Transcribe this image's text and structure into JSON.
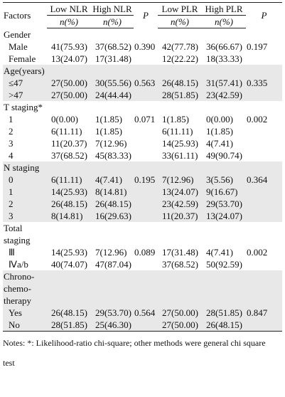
{
  "header": {
    "factors": "Factors",
    "low_nlr": "Low NLR",
    "high_nlr": "High NLR",
    "p1": "P",
    "low_plr": "Low PLR",
    "high_plr": "High PLR",
    "p2": "P",
    "n_pct": [
      "n(%)",
      "n(%)",
      "n(%)",
      "n(%)"
    ]
  },
  "sections": [
    {
      "label": "Gender",
      "p_nlr": "0.390",
      "p_plr": "0.197",
      "rows": [
        {
          "label": "Male",
          "cells": [
            "41(75.93)",
            "37(68.52)",
            "42(77.78)",
            "36(66.67)"
          ]
        },
        {
          "label": "Female",
          "cells": [
            "13(24.07)",
            "17(31.48)",
            "12(22.22)",
            "18(33.33)"
          ]
        }
      ]
    },
    {
      "label": "Age(years)",
      "p_nlr": "0.563",
      "p_plr": "0.335",
      "rows": [
        {
          "label": "≤47",
          "cells": [
            "27(50.00)",
            "30(55.56)",
            "26(48.15)",
            "31(57.41)"
          ]
        },
        {
          "label": ">47",
          "cells": [
            "27(50.00)",
            "24(44.44)",
            "28(51.85)",
            "23(42.59)"
          ]
        }
      ]
    },
    {
      "label": "T staging*",
      "p_nlr": "0.071",
      "p_plr": "0.002",
      "rows": [
        {
          "label": "1",
          "cells": [
            "0(0.00)",
            "1(1.85)",
            "1(1.85)",
            "0(0.00)"
          ]
        },
        {
          "label": "2",
          "cells": [
            "6(11.11)",
            "1(1.85)",
            "6(11.11)",
            "1(1.85)"
          ]
        },
        {
          "label": "3",
          "cells": [
            "11(20.37)",
            "7(12.96)",
            "14(25.93)",
            "4(7.41)"
          ]
        },
        {
          "label": "4",
          "cells": [
            "37(68.52)",
            "45(83.33)",
            "33(61.11)",
            "49(90.74)"
          ]
        }
      ]
    },
    {
      "label": "N staging",
      "p_nlr": "0.195",
      "p_plr": "0.364",
      "rows": [
        {
          "label": "0",
          "cells": [
            "6(11.11)",
            "4(7.41)",
            "7(12.96)",
            "3(5.56)"
          ]
        },
        {
          "label": "1",
          "cells": [
            "14(25.93)",
            "8(14.81)",
            "13(24.07)",
            "9(16.67)"
          ]
        },
        {
          "label": "2",
          "cells": [
            "26(48.15)",
            "26(48.15)",
            "23(42.59)",
            "29(53.70)"
          ]
        },
        {
          "label": "3",
          "cells": [
            "8(14.81)",
            "16(29.63)",
            "11(20.37)",
            "13(24.07)"
          ]
        }
      ]
    },
    {
      "label": "Total staging",
      "p_nlr": "0.089",
      "p_plr": "0.002",
      "rows": [
        {
          "label": "Ⅲ",
          "cells": [
            "14(25.93)",
            "7(12.96)",
            "17(31.48)",
            "4(7.41)"
          ]
        },
        {
          "label": "Ⅳa/b",
          "cells": [
            "40(74.07)",
            "47(87.04)",
            "37(68.52)",
            "50(92.59)"
          ]
        }
      ]
    },
    {
      "label": "Chrono-chemo-therapy",
      "p_nlr": "0.564",
      "p_plr": "0.847",
      "rows": [
        {
          "label": "Yes",
          "cells": [
            "26(48.15)",
            "29(53.70)",
            "27(50.00)",
            "28(51.85)"
          ]
        },
        {
          "label": "No",
          "cells": [
            "28(51.85)",
            "25(46.30)",
            "27(50.00)",
            "26(48.15)"
          ]
        }
      ]
    }
  ],
  "notes": "Notes: *: Likelihood-ratio chi-square; other methods were general chi square test"
}
